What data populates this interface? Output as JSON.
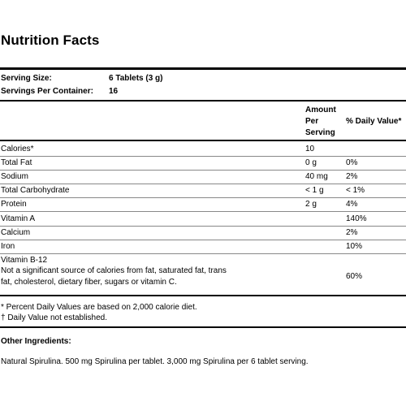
{
  "title": "Nutrition Facts",
  "serving": {
    "size_label": "Serving Size:",
    "size_value": "6 Tablets (3 g)",
    "per_container_label": "Servings Per Container:",
    "per_container_value": "16"
  },
  "columns": {
    "amount_line1": "Amount",
    "amount_line2": "Per",
    "amount_line3": "Serving",
    "daily_value": "% Daily Value*"
  },
  "rows": [
    {
      "name": "Calories*",
      "amount": "10",
      "dv": ""
    },
    {
      "name": "Total Fat",
      "amount": "0 g",
      "dv": "0%"
    },
    {
      "name": "Sodium",
      "amount": "40 mg",
      "dv": "2%"
    },
    {
      "name": "Total Carbohydrate",
      "amount": "< 1 g",
      "dv": "< 1%"
    },
    {
      "name": "Protein",
      "amount": "2 g",
      "dv": "4%"
    },
    {
      "name": "Vitamin A",
      "amount": "",
      "dv": "140%"
    },
    {
      "name": "Calcium",
      "amount": "",
      "dv": "2%"
    },
    {
      "name": "Iron",
      "amount": "",
      "dv": "10%"
    }
  ],
  "vitamin_b12": {
    "name": "Vitamin B-12",
    "note_line1": "Not a significant source of calories from fat, saturated fat, trans",
    "note_line2": "fat, cholesterol, dietary fiber, sugars or vitamin C.",
    "dv": "60%"
  },
  "footnotes": {
    "line1": "* Percent Daily Values are based on 2,000 calorie diet.",
    "line2": "† Daily Value not established."
  },
  "other_ingredients": {
    "heading": "Other Ingredients:",
    "text": "Natural Spirulina. 500 mg Spirulina per tablet. 3,000 mg Spirulina per 6 tablet serving."
  }
}
